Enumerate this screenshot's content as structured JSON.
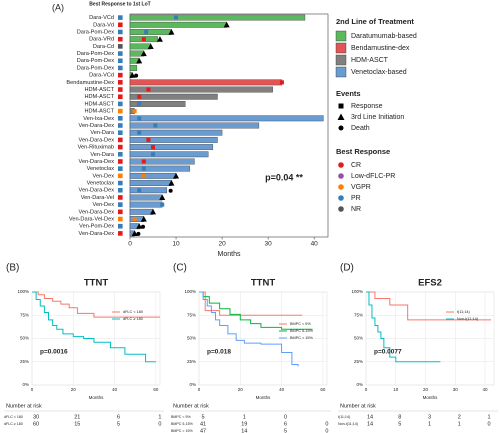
{
  "chart_data": [
    {
      "type": "swimmer",
      "title": "(A)",
      "subtitle": "Best Response to 1st LoT",
      "categories": [
        "Dara-VCd",
        "Dara-Vd",
        "Dara-Pom-Dex",
        "Dara-VRd",
        "Dara-Cd",
        "Dara-Pom-Dex",
        "Dara-Pom-Dex",
        "Dara-Pom-Dex",
        "Dara-VCd",
        "Bendamustine-Dex",
        "HDM-ASCT",
        "HDM-ASCT",
        "HDM-ASCT",
        "HDM-ASCT",
        "Ven-Ixa-Dex",
        "Ven-Dara-Dex",
        "Ven-Dara",
        "Ven-Dara-Dex",
        "Ven-Rituximab",
        "Ven-Dara",
        "Ven-Dara-Dex",
        "Venetoclax",
        "Ven-Dex",
        "Venetoclax",
        "Ven-Dara-Dex",
        "Ven-Dara-Vel",
        "Ven-Dex",
        "Ven-Dara-Dex",
        "Ven-Dara-Vel-Dex",
        "Ven-Pom-Dex",
        "Ven-Dara-Dex"
      ],
      "legend_title": "2nd Line of Treatment",
      "series": [
        {
          "name": "Daratumumab-based",
          "color": "#5cb85c",
          "values": [
            38,
            21,
            9,
            6,
            4.5,
            3,
            2,
            1.5,
            0.5,
            null,
            null,
            null,
            null,
            null,
            null,
            null,
            null,
            null,
            null,
            null,
            null,
            null,
            null,
            null,
            null,
            null,
            null,
            null,
            null,
            null,
            null
          ]
        },
        {
          "name": "Bendamustine-dex",
          "color": "#e05555",
          "values": [
            null,
            null,
            null,
            null,
            null,
            null,
            null,
            null,
            null,
            33,
            null,
            null,
            null,
            null,
            null,
            null,
            null,
            null,
            null,
            null,
            null,
            null,
            null,
            null,
            null,
            null,
            null,
            null,
            null,
            null,
            null
          ]
        },
        {
          "name": "HDM-ASCT",
          "color": "#808080",
          "values": [
            null,
            null,
            null,
            null,
            null,
            null,
            null,
            null,
            null,
            null,
            31,
            19,
            12,
            1,
            null,
            null,
            null,
            null,
            null,
            null,
            null,
            null,
            null,
            null,
            null,
            null,
            null,
            null,
            null,
            null,
            null
          ]
        },
        {
          "name": "Venetoclax-based",
          "color": "#6a9bd1",
          "values": [
            null,
            null,
            null,
            null,
            null,
            null,
            null,
            null,
            null,
            null,
            null,
            null,
            null,
            null,
            42,
            28,
            20,
            19,
            18,
            17,
            14,
            13,
            10,
            9,
            8,
            7,
            7,
            5,
            3,
            2,
            1
          ]
        }
      ],
      "events": {
        "title": "Events",
        "series": [
          {
            "name": "Response",
            "values": [
              10,
              null,
              3.5,
              3,
              null,
              null,
              null,
              null,
              null,
              33,
              4,
              2,
              2,
              1,
              2,
              5.5,
              2,
              4,
              5,
              5,
              3,
              3,
              3,
              null,
              2,
              null,
              7,
              null,
              1,
              null,
              null
            ]
          },
          {
            "name": "3rd Line Initiation",
            "values": [
              null,
              21,
              9,
              6.5,
              4.5,
              3,
              2,
              null,
              0.5,
              null,
              null,
              null,
              null,
              null,
              null,
              null,
              null,
              null,
              null,
              null,
              null,
              null,
              10,
              9,
              null,
              7,
              null,
              5,
              3,
              2,
              1
            ]
          },
          {
            "name": "Death",
            "values": [
              null,
              null,
              null,
              null,
              null,
              null,
              null,
              null,
              1,
              null,
              null,
              null,
              null,
              null,
              null,
              null,
              null,
              null,
              null,
              null,
              null,
              null,
              null,
              null,
              8.5,
              null,
              null,
              null,
              null,
              2.5,
              1.5
            ]
          }
        ]
      },
      "best_response": {
        "title": "Best Response",
        "series": [
          {
            "name": "CR",
            "color": "#e41a1c"
          },
          {
            "name": "Low-dFLC-PR",
            "color": "#984ea3"
          },
          {
            "name": "VGPR",
            "color": "#ff7f00"
          },
          {
            "name": "PR",
            "color": "#377eb8"
          },
          {
            "name": "NR",
            "color": "#555555"
          }
        ],
        "values": [
          "PR",
          "CR",
          "PR",
          "CR",
          "NR",
          "PR",
          "PR",
          "PR",
          "CR",
          "CR",
          "CR",
          "CR",
          "PR",
          "VGPR",
          "PR",
          "PR",
          "PR",
          "CR",
          "CR",
          "PR",
          "CR",
          "PR",
          "VGPR",
          "PR",
          "PR",
          "CR",
          "PR",
          "CR",
          "VGPR",
          "PR",
          "CR"
        ]
      },
      "xlim": [
        0,
        43
      ],
      "xticks": [
        0,
        10,
        20,
        30,
        40
      ],
      "xlabel": "Months",
      "annotation": "p=0.04 **"
    },
    {
      "type": "km",
      "title": "(B)",
      "subtitle": "TTNT",
      "annotation": "p=0.0016",
      "xlabel": "Months",
      "xlim": [
        0,
        62
      ],
      "xticks": [
        0,
        20,
        40,
        60
      ],
      "ylim": [
        0,
        100
      ],
      "yticks": [
        {
          "value": 0,
          "label": "0%"
        },
        {
          "value": 25,
          "label": "25%"
        },
        {
          "value": 50,
          "label": "50%"
        },
        {
          "value": 75,
          "label": "75%"
        },
        {
          "value": 100,
          "label": "100%"
        }
      ],
      "grid": true,
      "series": [
        {
          "name": "dFLC < 180",
          "color": "#f8766d",
          "x": [
            0,
            3,
            6,
            10,
            14,
            18,
            22,
            30,
            45,
            62
          ],
          "values": [
            100,
            97,
            93,
            90,
            87,
            83,
            77,
            73,
            73,
            73
          ]
        },
        {
          "name": "dFLC ≥ 180",
          "color": "#00bfc4",
          "x": [
            0,
            2,
            4,
            6,
            8,
            10,
            12,
            15,
            20,
            25,
            30,
            38,
            45,
            55,
            60
          ],
          "values": [
            100,
            92,
            85,
            78,
            70,
            64,
            60,
            55,
            52,
            50,
            46,
            40,
            33,
            25,
            25
          ]
        }
      ],
      "risk_title": "Number at risk",
      "risk": [
        [
          30,
          21,
          6,
          1
        ],
        [
          60,
          15,
          5,
          0
        ]
      ]
    },
    {
      "type": "km",
      "title": "(C)",
      "subtitle": "TTNT",
      "annotation": "p=0.018",
      "xlabel": "Months",
      "xlim": [
        0,
        62
      ],
      "xticks": [
        0,
        20,
        40,
        60
      ],
      "ylim": [
        0,
        100
      ],
      "yticks": [
        {
          "value": 0,
          "label": "0%"
        },
        {
          "value": 25,
          "label": "25%"
        },
        {
          "value": 50,
          "label": "50%"
        },
        {
          "value": 75,
          "label": "75%"
        },
        {
          "value": 100,
          "label": "100%"
        }
      ],
      "grid": true,
      "series": [
        {
          "name": "BMPC < 5%",
          "color": "#f8766d",
          "x": [
            0,
            3,
            10,
            50
          ],
          "values": [
            100,
            80,
            75,
            75
          ]
        },
        {
          "name": "BMPC 5-15%",
          "color": "#00ba38",
          "x": [
            0,
            2,
            5,
            10,
            15,
            20,
            25,
            30,
            40,
            55
          ],
          "values": [
            100,
            95,
            88,
            82,
            76,
            70,
            66,
            62,
            60,
            60
          ]
        },
        {
          "name": "BMPC > 15%",
          "color": "#619cff",
          "x": [
            0,
            2,
            4,
            6,
            8,
            10,
            14,
            18,
            22,
            30,
            40,
            45,
            48
          ],
          "values": [
            100,
            92,
            85,
            78,
            70,
            64,
            55,
            48,
            45,
            44,
            35,
            22,
            20
          ]
        }
      ],
      "risk_title": "Number at risk",
      "risk": [
        [
          5,
          1,
          0,
          null
        ],
        [
          41,
          19,
          6,
          0
        ],
        [
          47,
          14,
          5,
          0
        ]
      ]
    },
    {
      "type": "km",
      "title": "(D)",
      "subtitle": "EFS2",
      "annotation": "p=0.0077",
      "xlabel": "Months",
      "xlim": [
        0,
        43
      ],
      "xticks": [
        0,
        10,
        20,
        30,
        40
      ],
      "ylim": [
        0,
        100
      ],
      "yticks": [
        {
          "value": 0,
          "label": "0%"
        },
        {
          "value": 25,
          "label": "25%"
        },
        {
          "value": 50,
          "label": "50%"
        },
        {
          "value": 75,
          "label": "75%"
        },
        {
          "value": 100,
          "label": "100%"
        }
      ],
      "grid": true,
      "series": [
        {
          "name": "t(11;14)",
          "color": "#f8766d",
          "x": [
            0,
            3,
            8,
            14,
            20,
            42
          ],
          "values": [
            100,
            93,
            86,
            70,
            70,
            70
          ]
        },
        {
          "name": "Non-t(11;14)",
          "color": "#00bfc4",
          "x": [
            0,
            1,
            2,
            3,
            4,
            5,
            6,
            8,
            10,
            25
          ],
          "values": [
            100,
            86,
            72,
            64,
            57,
            50,
            40,
            30,
            25,
            25
          ]
        }
      ],
      "risk_title": "Number at risk",
      "risk": [
        [
          14,
          8,
          3,
          2,
          1
        ],
        [
          14,
          5,
          1,
          1,
          0
        ]
      ]
    }
  ]
}
